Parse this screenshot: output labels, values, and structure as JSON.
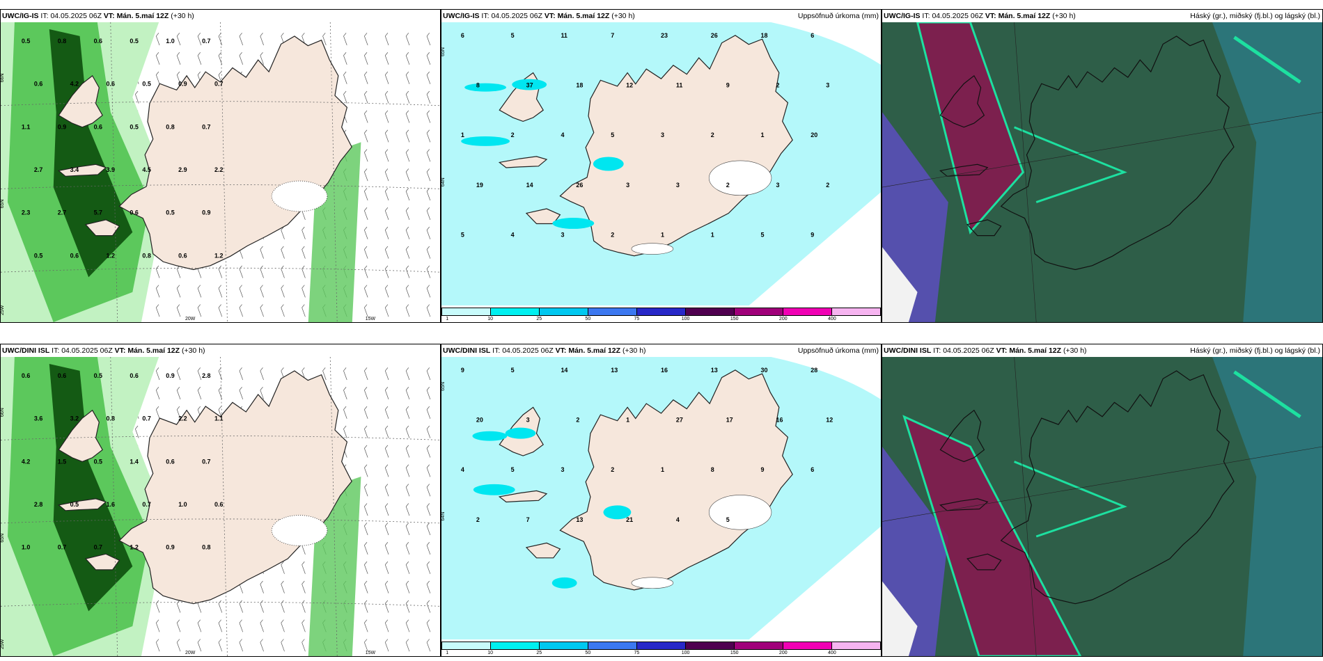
{
  "rows": [
    {
      "model": "UWC/IG-IS",
      "panels": [
        {
          "type": "wind",
          "header": {
            "model": "UWC/IG-IS",
            "it_label": "IT:",
            "it_value": "04.05.2025 06Z",
            "vt_label": "VT:",
            "vt_value": "Mán. 5.maí 12Z",
            "lead": "(+30 h)",
            "right": ""
          },
          "values": [
            "0.5",
            "0.8",
            "0.6",
            "0.5",
            "1.0",
            "0.7",
            "0.6",
            "4.2",
            "0.6",
            "0.5",
            "0.9",
            "0.7",
            "1.1",
            "0.9",
            "0.6",
            "0.5",
            "0.8",
            "0.7",
            "2.7",
            "3.4",
            "3.9",
            "4.5",
            "2.9",
            "2.2",
            "2.3",
            "2.7",
            "5.7",
            "0.6",
            "0.5",
            "0.9",
            "0.5",
            "0.6",
            "1.2",
            "0.8",
            "0.6",
            "1.2"
          ],
          "axes": [
            "66N",
            "65N",
            "25W",
            "20W",
            "15W"
          ]
        },
        {
          "type": "precip",
          "header": {
            "model": "UWC/IG-IS",
            "it_label": "IT:",
            "it_value": "04.05.2025 06Z",
            "vt_label": "VT:",
            "vt_value": "Mán. 5.maí 12Z",
            "lead": "(+30 h)",
            "right": "Uppsöfnuð úrkoma (mm)"
          },
          "values": [
            "6",
            "5",
            "11",
            "7",
            "23",
            "26",
            "18",
            "6",
            "8",
            "37",
            "18",
            "12",
            "11",
            "9",
            "2",
            "3",
            "1",
            "2",
            "4",
            "5",
            "3",
            "2",
            "1",
            "20",
            "19",
            "14",
            "26",
            "3",
            "3",
            "2",
            "3",
            "2",
            "5",
            "4",
            "3",
            "2",
            "1",
            "1",
            "5",
            "9"
          ],
          "axes": [
            "65N",
            "64N"
          ]
        },
        {
          "type": "cloud",
          "header": {
            "model": "UWC/IG-IS",
            "it_label": "IT:",
            "it_value": "04.05.2025 06Z",
            "vt_label": "VT:",
            "vt_value": "Mán. 5.maí 12Z",
            "lead": "(+30 h)",
            "right": "Háský (gr.), miðský (fj.bl.) og lágský (bl.)"
          }
        }
      ]
    },
    {
      "model": "UWC/DINI ISL",
      "panels": [
        {
          "type": "wind",
          "header": {
            "model": "UWC/DINI ISL",
            "it_label": "IT:",
            "it_value": "04.05.2025 06Z",
            "vt_label": "VT:",
            "vt_value": "Mán. 5.maí 12Z",
            "lead": "(+30 h)",
            "right": ""
          },
          "values": [
            "0.6",
            "0.6",
            "0.5",
            "0.6",
            "0.9",
            "2.8",
            "3.6",
            "3.2",
            "0.8",
            "0.7",
            "2.2",
            "1.1",
            "4.2",
            "1.5",
            "0.5",
            "1.4",
            "0.6",
            "0.7",
            "2.8",
            "0.5",
            "1.6",
            "0.7",
            "1.0",
            "0.6",
            "1.0",
            "0.7",
            "0.7",
            "1.2",
            "0.9",
            "0.8"
          ],
          "axes": [
            "66N",
            "65N",
            "25W",
            "20W",
            "15W"
          ]
        },
        {
          "type": "precip",
          "header": {
            "model": "UWC/DINI ISL",
            "it_label": "IT:",
            "it_value": "04.05.2025 06Z",
            "vt_label": "VT:",
            "vt_value": "Mán. 5.maí 12Z",
            "lead": "(+30 h)",
            "right": "Uppsöfnuð úrkoma (mm)"
          },
          "values": [
            "9",
            "5",
            "14",
            "13",
            "16",
            "13",
            "30",
            "28",
            "20",
            "3",
            "2",
            "1",
            "27",
            "17",
            "16",
            "12",
            "4",
            "5",
            "3",
            "2",
            "1",
            "8",
            "9",
            "6",
            "2",
            "7",
            "13",
            "21",
            "4",
            "5"
          ],
          "axes": [
            "65N",
            "64N"
          ]
        },
        {
          "type": "cloud",
          "header": {
            "model": "UWC/DINI ISL",
            "it_label": "IT:",
            "it_value": "04.05.2025 06Z",
            "vt_label": "VT:",
            "vt_value": "Mán. 5.maí 12Z",
            "lead": "(+30 h)",
            "right": "Háský (gr.), miðský (fj.bl.) og lágský (bl.)"
          }
        }
      ]
    }
  ],
  "colorbar": {
    "ticks": [
      "1",
      "10",
      "25",
      "50",
      "75",
      "100",
      "150",
      "200",
      "400"
    ],
    "colors": [
      "#c8fbfb",
      "#00f0f0",
      "#00c8f0",
      "#3c78f0",
      "#2828c8",
      "#500050",
      "#a0007a",
      "#f000b4",
      "#f6b4f0"
    ]
  },
  "colors": {
    "land": "#f6e7dc",
    "precip_light": "#b4f8fa",
    "green_light": "#c2f2c2",
    "green_mid": "#5cc85c",
    "green_dark": "#145a14",
    "cloud_bg": "#2e5e48"
  }
}
